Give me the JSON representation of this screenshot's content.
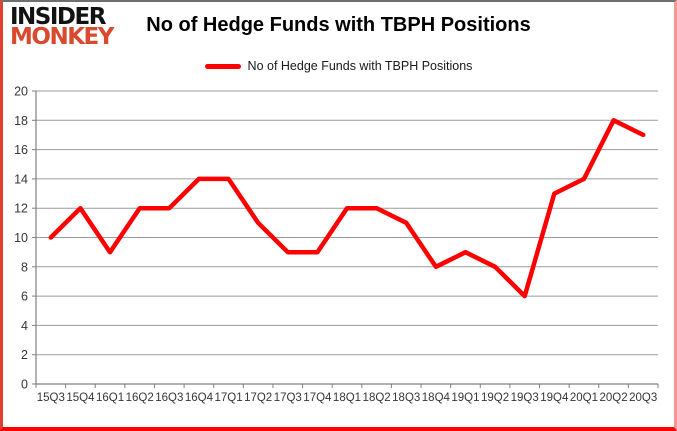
{
  "logo": {
    "line1": "INSIDER",
    "line2": "MONKEY"
  },
  "header": {
    "title": "No of Hedge Funds with TBPH Positions"
  },
  "legend": {
    "label": "No of Hedge Funds with TBPH Positions",
    "line_color": "#ff0000"
  },
  "colors": {
    "series_line": "#ff0000",
    "gridline": "#9b9b9b",
    "axis": "#808080",
    "tick_label": "#363636",
    "logo_red": "#d8492f",
    "frame_bottom": "#fe0000"
  },
  "chart_data": {
    "type": "line",
    "title": "No of Hedge Funds with TBPH Positions",
    "xlabel": "",
    "ylabel": "",
    "categories": [
      "15Q3",
      "15Q4",
      "16Q1",
      "16Q2",
      "16Q3",
      "16Q4",
      "17Q1",
      "17Q2",
      "17Q3",
      "17Q4",
      "18Q1",
      "18Q2",
      "18Q3",
      "18Q4",
      "19Q1",
      "19Q2",
      "19Q3",
      "19Q4",
      "20Q1",
      "20Q2",
      "20Q3"
    ],
    "series": [
      {
        "name": "No of Hedge Funds with TBPH Positions",
        "color": "#ff0000",
        "values": [
          10,
          12,
          9,
          12,
          12,
          14,
          14,
          11,
          9,
          9,
          12,
          12,
          11,
          8,
          9,
          8,
          6,
          13,
          14,
          18,
          17
        ]
      }
    ],
    "ylim": [
      0,
      20
    ],
    "ytick_step": 2,
    "grid": true,
    "legend_position": "top-center"
  }
}
